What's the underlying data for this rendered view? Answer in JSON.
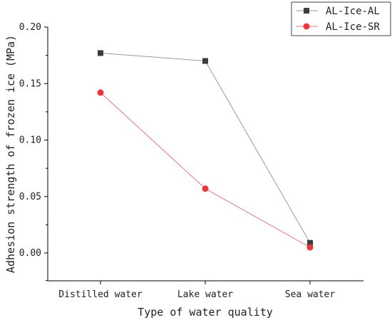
{
  "chart_data": {
    "type": "line",
    "categories": [
      "Distilled water",
      "Lake water",
      "Sea water"
    ],
    "series": [
      {
        "name": "AL-Ice-AL",
        "values": [
          0.177,
          0.17,
          0.009
        ],
        "color": "#3c3c3c",
        "line_color": "#9a9a9a",
        "marker": "square"
      },
      {
        "name": "AL-Ice-SR",
        "values": [
          0.142,
          0.057,
          0.005
        ],
        "color": "#e8383d",
        "line_color": "#e07a7c",
        "marker": "circle"
      }
    ],
    "xlabel": "Type of water quality",
    "ylabel": "Adhesion strength of frozen ice (MPa)",
    "ylim": [
      -0.025,
      0.2
    ],
    "yticks": [
      "0.00",
      "0.05",
      "0.10",
      "0.15",
      "0.20"
    ],
    "grid": false,
    "legend": "top-right"
  }
}
